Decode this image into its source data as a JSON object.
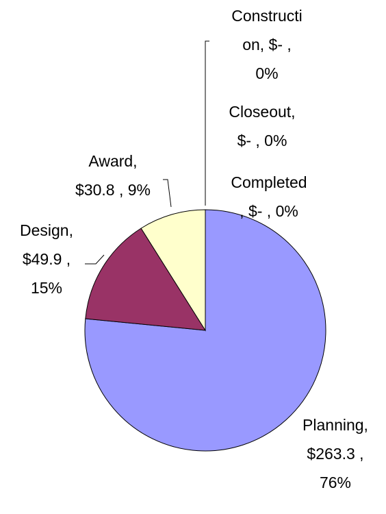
{
  "chart_data": {
    "type": "pie",
    "values": [
      263.3,
      49.9,
      30.8,
      0,
      0,
      0
    ],
    "colors": [
      "#9999ff",
      "#993366",
      "#ffffcc",
      "#ffffff",
      "#ffffff",
      "#ffffff"
    ],
    "value_labels": [
      [
        "Planning,",
        "$263.3 ,",
        "76%"
      ],
      [
        "Design,",
        "$49.9 ,",
        "15%"
      ],
      [
        "Award,",
        "$30.8 , 9%"
      ],
      [
        "Constructi",
        "on,  $-    ,",
        "0%"
      ],
      [
        "Closeout,",
        "$-   , 0%"
      ],
      [
        "Completed",
        ", $-   , 0%"
      ]
    ]
  }
}
